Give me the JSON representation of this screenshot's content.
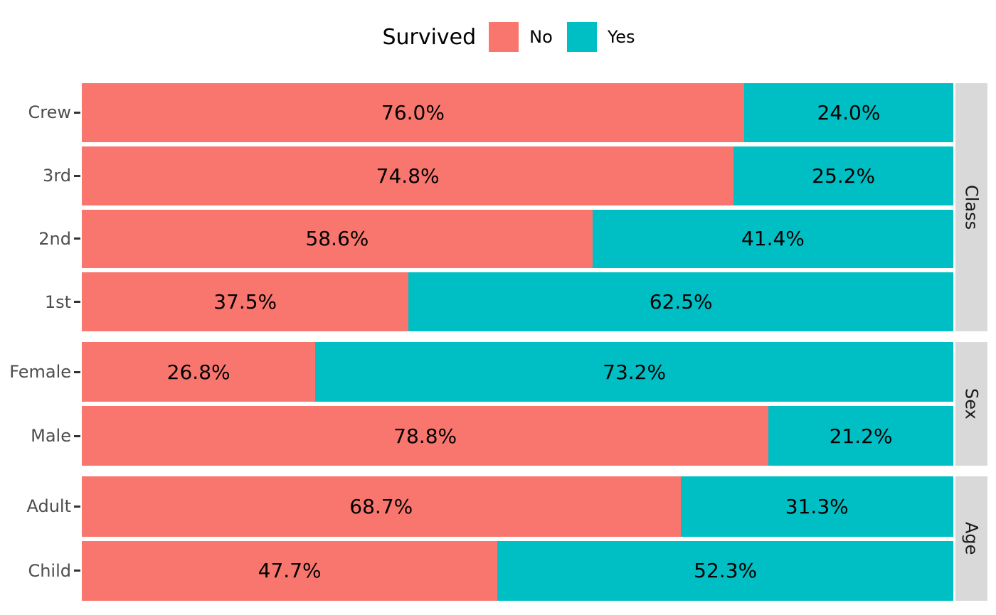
{
  "legend": {
    "title": "Survived",
    "items": [
      {
        "label": "No",
        "color": "#F8766D"
      },
      {
        "label": "Yes",
        "color": "#00BFC4"
      }
    ]
  },
  "chart_data": {
    "type": "bar",
    "variant": "horizontal-stacked-100pct",
    "title": "",
    "xlabel": "",
    "ylabel": "",
    "xlim": [
      0,
      100
    ],
    "grid": false,
    "legend_position": "top-center",
    "legend_title": "Survived",
    "series": [
      {
        "name": "No",
        "color": "#F8766D"
      },
      {
        "name": "Yes",
        "color": "#00BFC4"
      }
    ],
    "facets": [
      {
        "label": "Class",
        "rows": [
          {
            "category": "Crew",
            "values": [
              76.0,
              24.0
            ],
            "labels": [
              "76.0%",
              "24.0%"
            ]
          },
          {
            "category": "3rd",
            "values": [
              74.8,
              25.2
            ],
            "labels": [
              "74.8%",
              "25.2%"
            ]
          },
          {
            "category": "2nd",
            "values": [
              58.6,
              41.4
            ],
            "labels": [
              "58.6%",
              "41.4%"
            ]
          },
          {
            "category": "1st",
            "values": [
              37.5,
              62.5
            ],
            "labels": [
              "37.5%",
              "62.5%"
            ]
          }
        ]
      },
      {
        "label": "Sex",
        "rows": [
          {
            "category": "Female",
            "values": [
              26.8,
              73.2
            ],
            "labels": [
              "26.8%",
              "73.2%"
            ]
          },
          {
            "category": "Male",
            "values": [
              78.8,
              21.2
            ],
            "labels": [
              "78.8%",
              "21.2%"
            ]
          }
        ]
      },
      {
        "label": "Age",
        "rows": [
          {
            "category": "Adult",
            "values": [
              68.7,
              31.3
            ],
            "labels": [
              "68.7%",
              "31.3%"
            ]
          },
          {
            "category": "Child",
            "values": [
              47.7,
              52.3
            ],
            "labels": [
              "47.7%",
              "52.3%"
            ]
          }
        ]
      }
    ]
  },
  "colors": {
    "no": "#F8766D",
    "yes": "#00BFC4",
    "strip_background": "#D9D9D9",
    "axis_text": "#4D4D4D",
    "tick": "#333333",
    "value_text": "#000000",
    "background": "#FFFFFF"
  }
}
